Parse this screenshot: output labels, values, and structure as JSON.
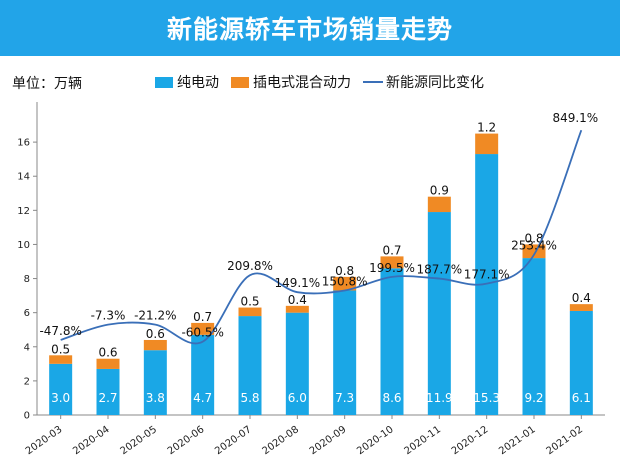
{
  "header": {
    "title": "新能源轿车市场销量走势"
  },
  "unit_label": "单位：万辆",
  "colors": {
    "banner": "#22a4e8",
    "bev": "#1aa7e6",
    "phev": "#f08a24",
    "line": "#3a6fb8"
  },
  "chart_data": {
    "type": "bar",
    "title": "新能源轿车市场销量走势",
    "stacked": true,
    "categories": [
      "2020-03",
      "2020-04",
      "2020-05",
      "2020-06",
      "2020-07",
      "2020-08",
      "2020-09",
      "2020-10",
      "2020-11",
      "2020-12",
      "2021-01",
      "2021-02"
    ],
    "series": [
      {
        "name": "纯电动",
        "values": [
          3.0,
          2.7,
          3.8,
          4.7,
          5.8,
          6.0,
          7.3,
          8.6,
          11.9,
          15.3,
          9.2,
          6.1
        ],
        "labels": [
          "3.0",
          "2.7",
          "3.8",
          "4.7",
          "5.8",
          "6.0",
          "7.3",
          "8.6",
          "11.9",
          "15.3",
          "9.2",
          "6.1"
        ]
      },
      {
        "name": "插电式混合动力",
        "values": [
          0.5,
          0.6,
          0.6,
          0.7,
          0.5,
          0.4,
          0.8,
          0.7,
          0.9,
          1.2,
          0.8,
          0.4
        ],
        "labels": [
          "0.5",
          "0.6",
          "0.6",
          "0.7",
          "0.5",
          "0.4",
          "0.8",
          "0.7",
          "0.9",
          "1.2",
          "0.8",
          "0.4"
        ]
      }
    ],
    "line_series": {
      "name": "新能源同比变化",
      "labels": [
        "-47.8%",
        "-7.3%",
        "-21.2%",
        "-60.5%",
        "209.8%",
        "149.1%",
        "150.8%",
        "199.5%",
        "187.7%",
        "177.1%",
        "253.4%",
        "849.1%"
      ],
      "y_levels": [
        4.4,
        5.3,
        5.3,
        4.3,
        8.2,
        7.2,
        7.3,
        8.1,
        8.0,
        7.7,
        9.4,
        16.7
      ]
    },
    "ylim": [
      0,
      18
    ],
    "yticks": [
      0,
      2,
      4,
      6,
      8,
      10,
      12,
      14,
      16
    ],
    "grid": false,
    "legend_position": "top"
  }
}
